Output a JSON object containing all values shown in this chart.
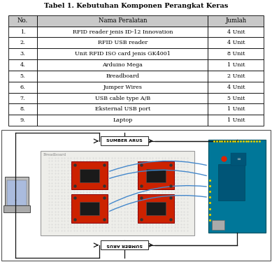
{
  "title": "Tabel 1. Kebutuhan Komponen Perangkat Keras",
  "headers": [
    "No.",
    "Nama Peralatan",
    "Jumlah"
  ],
  "rows": [
    [
      "1.",
      "RFID reader jenis ID-12 Innovation",
      "4 Unit"
    ],
    [
      "2.",
      "RFID USB reader",
      "4 Unit"
    ],
    [
      "3.",
      "Unit RFID ISO card jenis GK4001",
      "8 Unit"
    ],
    [
      "4.",
      "Arduino Mega",
      "1 Unit"
    ],
    [
      "5.",
      "Breadboard",
      "2 Unit"
    ],
    [
      "6.",
      "Jumper Wires",
      "4 Unit"
    ],
    [
      "7.",
      "USB cable type A/B",
      "5 Unit"
    ],
    [
      "8.",
      "Eksternal USB port",
      "1 Unit"
    ],
    [
      "9.",
      "Laptop",
      "1 Unit"
    ]
  ],
  "border_color": "#000000",
  "header_bg": "#c8c8c8",
  "wire_blue": "#4488cc",
  "wire_black": "#111111",
  "rfid_red": "#cc2200",
  "arduino_teal": "#007799",
  "sumber_arus_label": "SUMBER ARUS",
  "breadboard_label": "Breadboard"
}
